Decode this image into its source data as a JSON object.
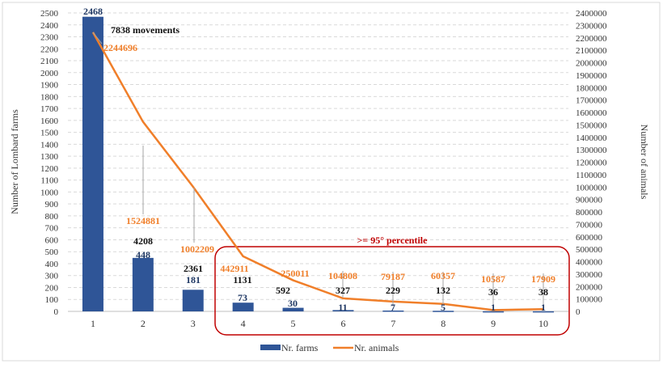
{
  "chart_data": {
    "type": "bar+line",
    "categories": [
      "1",
      "2",
      "3",
      "4",
      "5",
      "6",
      "7",
      "8",
      "9",
      "10"
    ],
    "series": [
      {
        "name": "Nr. farms",
        "type": "bar",
        "axis": "left",
        "color": "#2F5597",
        "values": [
          2468,
          448,
          181,
          73,
          30,
          11,
          7,
          5,
          1,
          1
        ]
      },
      {
        "name": "Nr. animals",
        "type": "line",
        "axis": "right",
        "color": "#F07F2A",
        "values": [
          2244696,
          1524881,
          1002209,
          442911,
          250011,
          104808,
          79187,
          60357,
          10587,
          17909
        ]
      }
    ],
    "movements": [
      7838,
      4208,
      2361,
      1131,
      592,
      327,
      229,
      132,
      36,
      38
    ],
    "movements_first_label": "7838 movements",
    "ylabel": "Number of Lombard farms",
    "y2label": "Number of animals",
    "ylim": [
      0,
      2500
    ],
    "y2lim": [
      0,
      2400000
    ],
    "yticks_step": 100,
    "y2ticks_step": 100000,
    "grid": true,
    "legend_placement": "bottom",
    "annotation": {
      "text": ">= 95° percentile",
      "color": "#C00000",
      "categories_range": [
        "4",
        "10"
      ]
    }
  }
}
